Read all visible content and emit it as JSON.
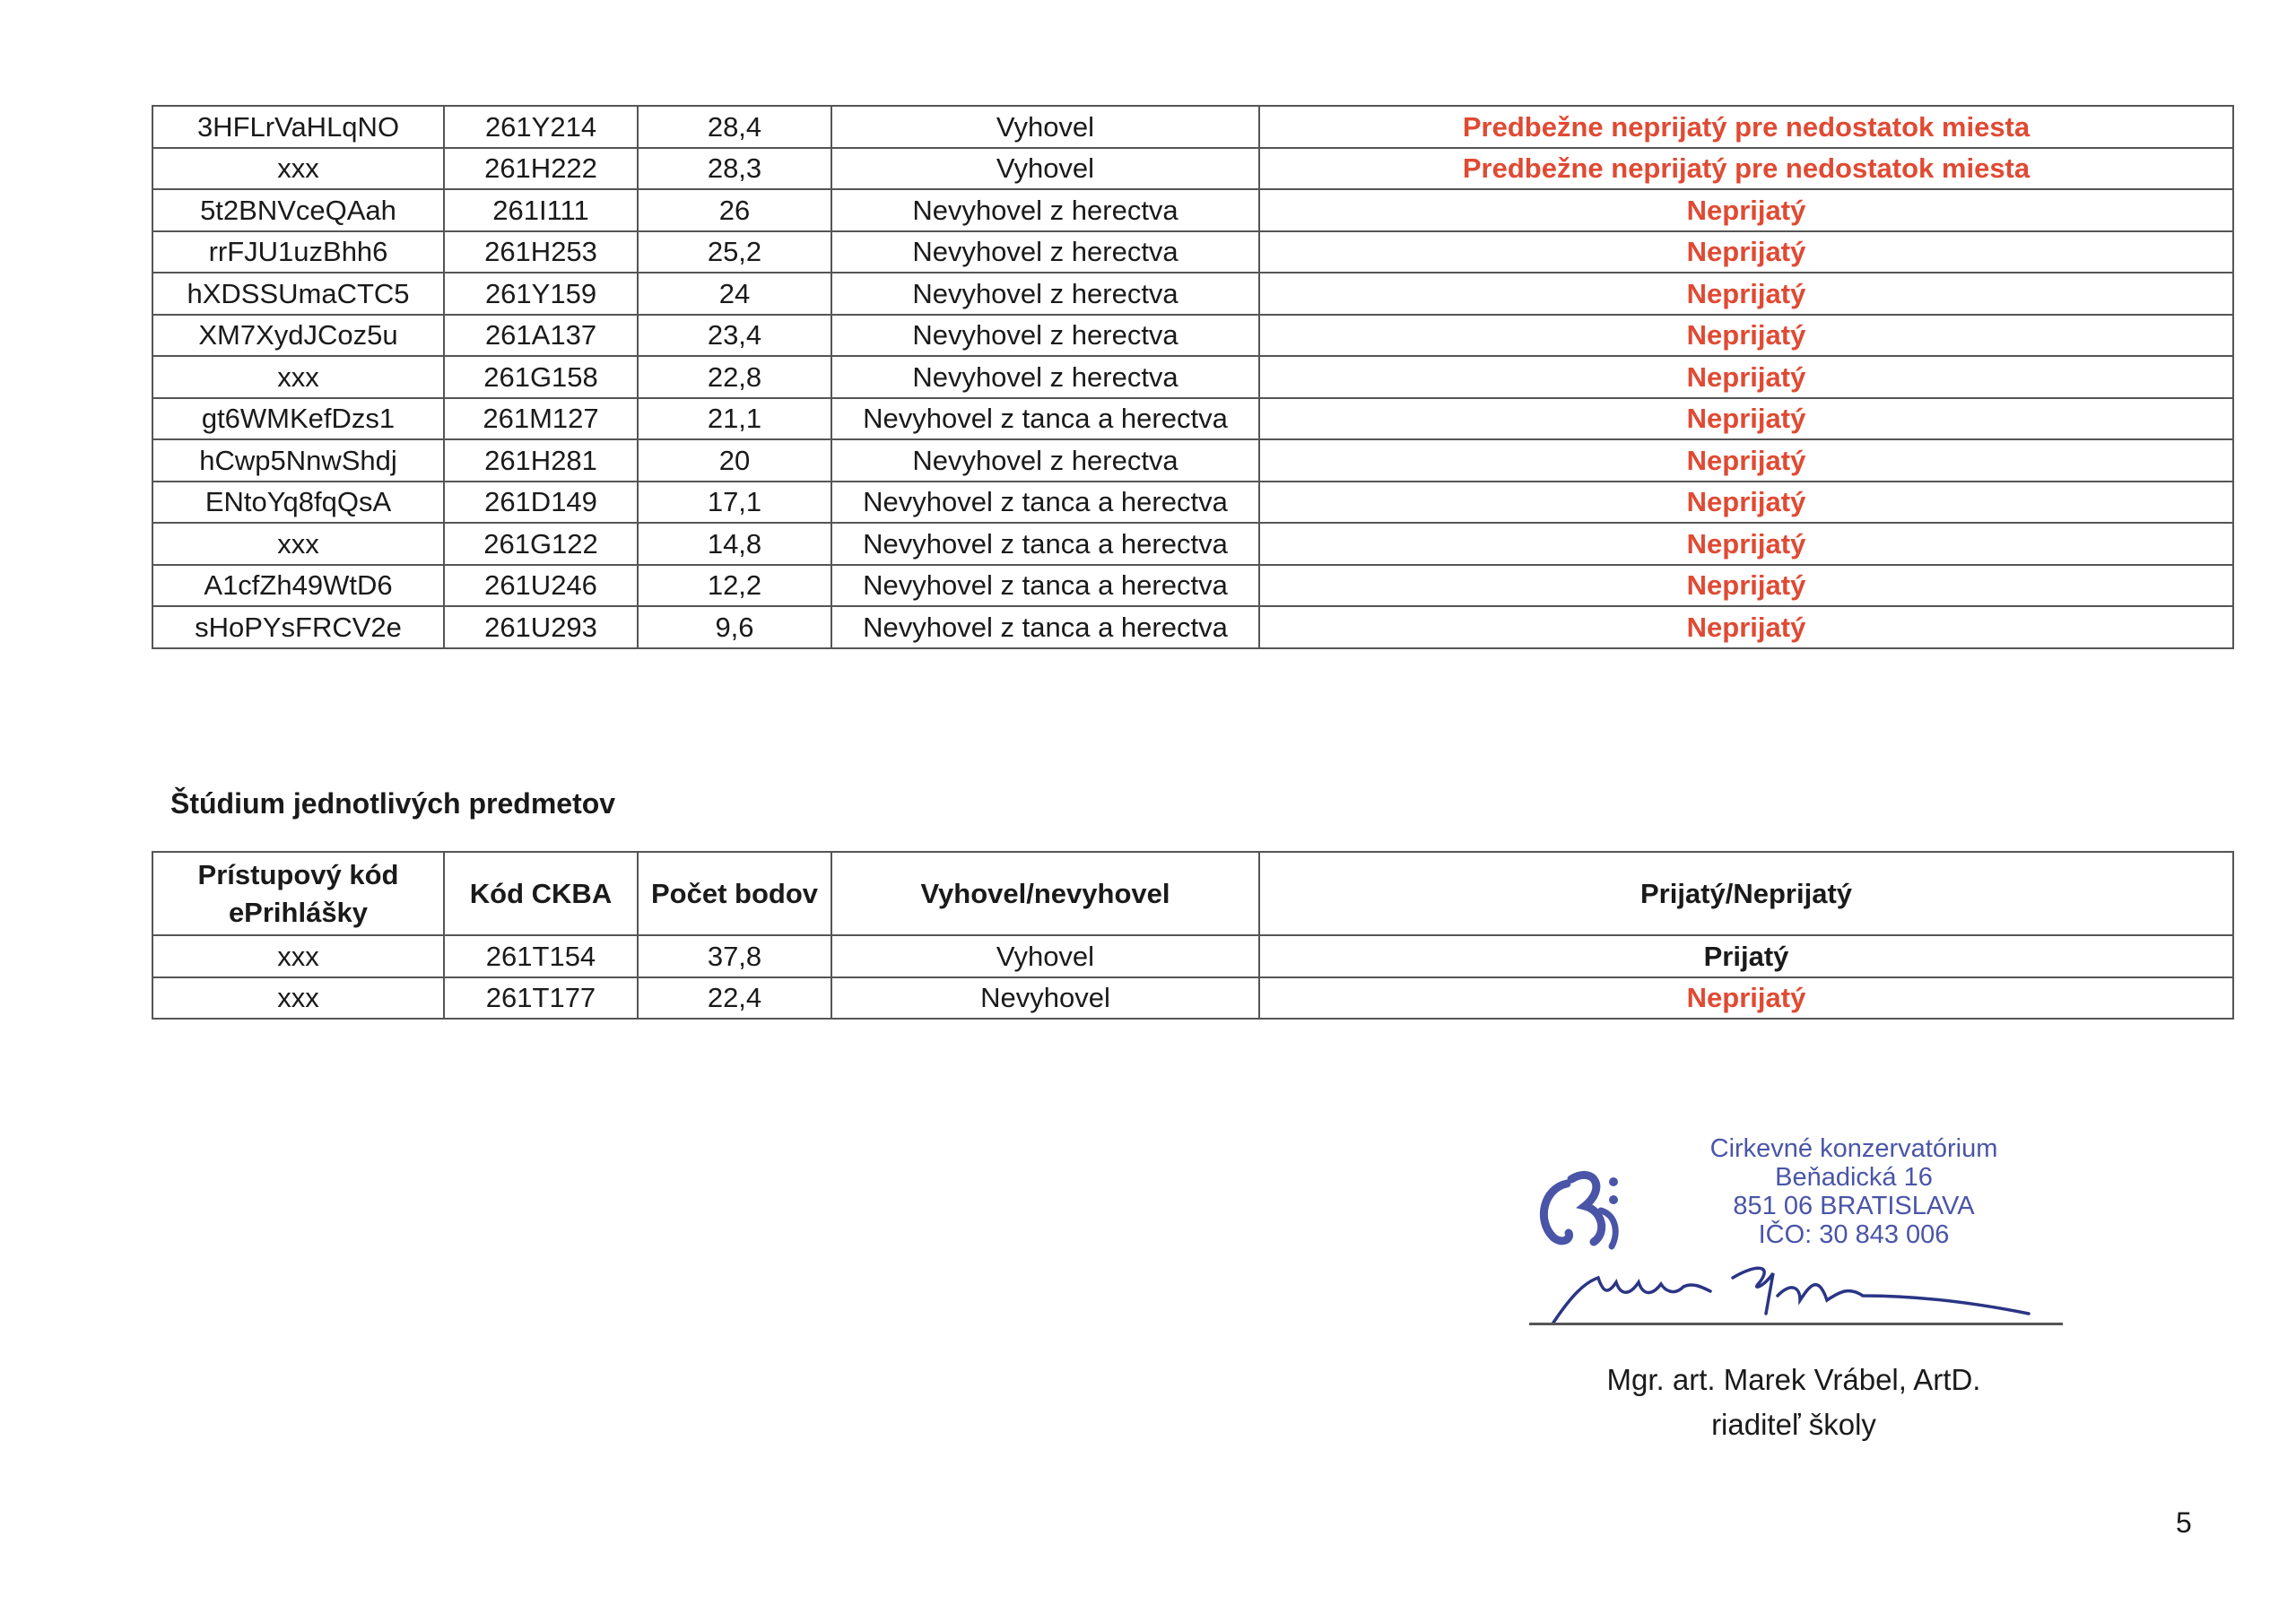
{
  "table1": {
    "rows": [
      [
        "3HFLrVaHLqNO",
        "261Y214",
        "28,4",
        "Vyhovel",
        "Predbežne neprijatý pre nedostatok miesta"
      ],
      [
        "xxx",
        "261H222",
        "28,3",
        "Vyhovel",
        "Predbežne neprijatý pre nedostatok miesta"
      ],
      [
        "5t2BNVceQAah",
        "261I111",
        "26",
        "Nevyhovel z herectva",
        "Neprijatý"
      ],
      [
        "rrFJU1uzBhh6",
        "261H253",
        "25,2",
        "Nevyhovel z herectva",
        "Neprijatý"
      ],
      [
        "hXDSSUmaCTC5",
        "261Y159",
        "24",
        "Nevyhovel z herectva",
        "Neprijatý"
      ],
      [
        "XM7XydJCoz5u",
        "261A137",
        "23,4",
        "Nevyhovel z herectva",
        "Neprijatý"
      ],
      [
        "xxx",
        "261G158",
        "22,8",
        "Nevyhovel z herectva",
        "Neprijatý"
      ],
      [
        "gt6WMKefDzs1",
        "261M127",
        "21,1",
        "Nevyhovel z tanca a herectva",
        "Neprijatý"
      ],
      [
        "hCwp5NnwShdj",
        "261H281",
        "20",
        "Nevyhovel z herectva",
        "Neprijatý"
      ],
      [
        "ENtoYq8fqQsA",
        "261D149",
        "17,1",
        "Nevyhovel z tanca a herectva",
        "Neprijatý"
      ],
      [
        "xxx",
        "261G122",
        "14,8",
        "Nevyhovel z tanca a herectva",
        "Neprijatý"
      ],
      [
        "A1cfZh49WtD6",
        "261U246",
        "12,2",
        "Nevyhovel z tanca a herectva",
        "Neprijatý"
      ],
      [
        "sHoPYsFRCV2e",
        "261U293",
        "9,6",
        "Nevyhovel z tanca a herectva",
        "Neprijatý"
      ]
    ]
  },
  "section_heading": "Štúdium jednotlivých predmetov",
  "table2": {
    "headers": [
      "Prístupový kód ePrihlášky",
      "Kód CKBA",
      "Počet bodov",
      "Vyhovel/nevyhovel",
      "Prijatý/Neprijatý"
    ],
    "rows": [
      [
        "xxx",
        "261T154",
        "37,8",
        "Vyhovel",
        "Prijatý"
      ],
      [
        "xxx",
        "261T177",
        "22,4",
        "Nevyhovel",
        "Neprijatý"
      ]
    ]
  },
  "stamp": {
    "lines": [
      "Cirkevné konzervatórium",
      "Beňadická 16",
      "851 06 BRATISLAVA",
      "IČO: 30 843 006"
    ],
    "color": "#4a55a8"
  },
  "signatory": {
    "name": "Mgr. art. Marek Vrábel, ArtD.",
    "role": "riaditeľ školy"
  },
  "page_number": "5",
  "colors": {
    "rejected": "#e04a33",
    "stamp": "#4a55a8"
  }
}
